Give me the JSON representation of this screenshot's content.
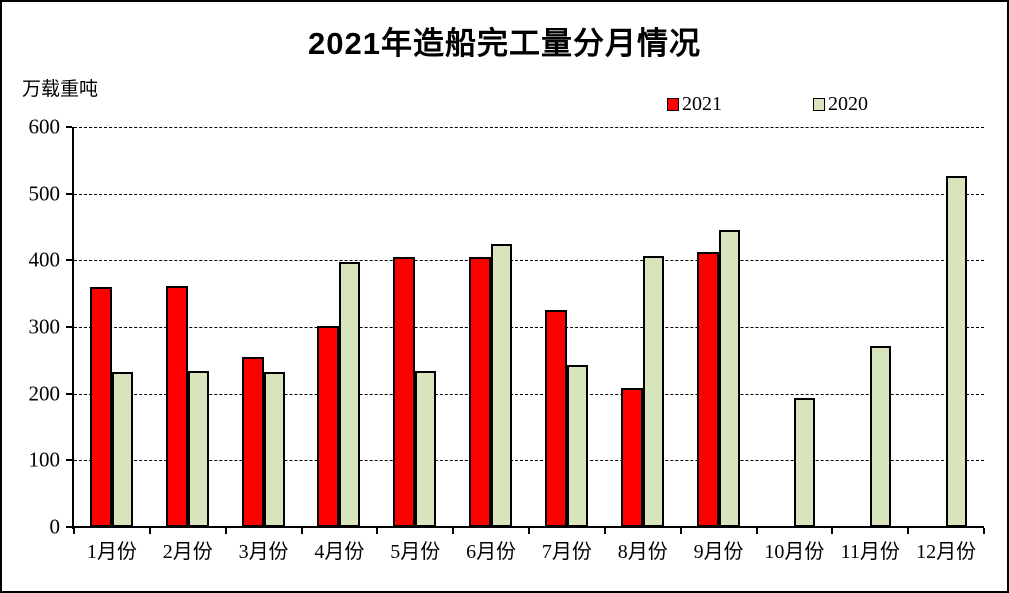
{
  "title": "2021年造船完工量分月情况",
  "y_axis_unit": "万载重吨",
  "chart_data": {
    "type": "bar",
    "title": "2021年造船完工量分月情况",
    "ylabel": "万载重吨",
    "categories": [
      "1月份",
      "2月份",
      "3月份",
      "4月份",
      "5月份",
      "6月份",
      "7月份",
      "8月份",
      "9月份",
      "10月份",
      "11月份",
      "12月份"
    ],
    "series": [
      {
        "name": "2021",
        "color": "#ff0000",
        "values": [
          360,
          362,
          255,
          302,
          405,
          405,
          325,
          208,
          413,
          null,
          null,
          null
        ]
      },
      {
        "name": "2020",
        "color": "#d8e4bc",
        "values": [
          232,
          234,
          232,
          398,
          234,
          425,
          243,
          406,
          445,
          193,
          272,
          527
        ]
      }
    ],
    "ylim": [
      0,
      600
    ],
    "yticks": [
      0,
      100,
      200,
      300,
      400,
      500,
      600
    ],
    "grid": "horizontal-dashed",
    "legend_position": "top-right",
    "bar_border_color": "#000000"
  }
}
